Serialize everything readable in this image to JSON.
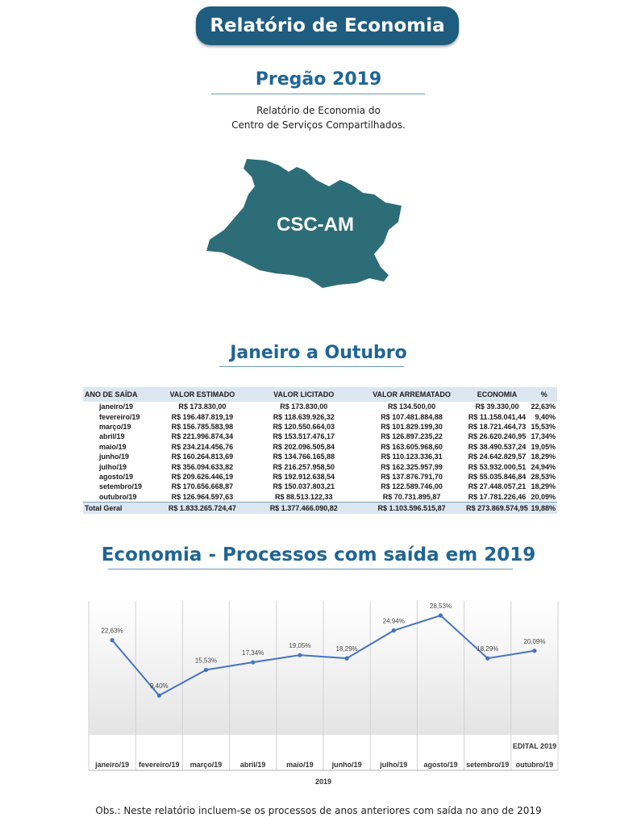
{
  "header": {
    "title": "Relatório de Economia"
  },
  "section1": {
    "title": "Pregão 2019",
    "subtitle_line1": "Relatório de Economia do",
    "subtitle_line2": "Centro de Serviços Compartilhados."
  },
  "map": {
    "label": "CSC-AM",
    "color": "#2c6d78"
  },
  "section2": {
    "title": "Janeiro a Outubro"
  },
  "table": {
    "headers": [
      "ANO DE SAÍDA",
      "VALOR ESTIMADO",
      "VALOR LICITADO",
      "VALOR ARREMATADO",
      "ECONOMIA",
      "%"
    ],
    "rows": [
      [
        "janeiro/19",
        "R$ 173.830,00",
        "R$ 173.830,00",
        "R$ 134.500,00",
        "R$ 39.330,00",
        "22,63%"
      ],
      [
        "fevereiro/19",
        "R$ 196.487.819,19",
        "R$ 118.639.926,32",
        "R$ 107.481.884,88",
        "R$ 11.158.041,44",
        "9,40%"
      ],
      [
        "março/19",
        "R$ 156.785.583,98",
        "R$ 120.550.664,03",
        "R$ 101.829.199,30",
        "R$ 18.721.464,73",
        "15,53%"
      ],
      [
        "abril/19",
        "R$ 221.996.874,34",
        "R$ 153.517.476,17",
        "R$ 126.897.235,22",
        "R$ 26.620.240,95",
        "17,34%"
      ],
      [
        "maio/19",
        "R$ 234.214.456,76",
        "R$ 202.096.505,84",
        "R$ 163.605.968,60",
        "R$ 38.490.537,24",
        "19,05%"
      ],
      [
        "junho/19",
        "R$ 160.264.813,69",
        "R$ 134.766.165,88",
        "R$ 110.123.336,31",
        "R$ 24.642.829,57",
        "18,29%"
      ],
      [
        "julho/19",
        "R$ 356.094.633,82",
        "R$ 216.257.958,50",
        "R$ 162.325.957,99",
        "R$ 53.932.000,51",
        "24,94%"
      ],
      [
        "agosto/19",
        "R$ 209.626.446,19",
        "R$ 192.912.638,54",
        "R$ 137.876.791,70",
        "R$ 55.035.846,84",
        "28,53%"
      ],
      [
        "setembro/19",
        "R$ 170.656.668,87",
        "R$ 150.037.803,21",
        "R$ 122.589.746,00",
        "R$ 27.448.057,21",
        "18,29%"
      ],
      [
        "outubro/19",
        "R$ 126.964.597,63",
        "R$ 88.513.122,33",
        "R$ 70.731.895,87",
        "R$ 17.781.226,46",
        "20,09%"
      ]
    ],
    "total": [
      "Total Geral",
      "R$ 1.833.265.724,47",
      "R$ 1.377.466.090,82",
      "R$ 1.103.596.515,87",
      "R$ 273.869.574,95",
      "19,88%"
    ]
  },
  "section3": {
    "title": "Economia - Processos com saída em 2019"
  },
  "chart_data": {
    "type": "line",
    "categories": [
      "janeiro/19",
      "fevereiro/19",
      "março/19",
      "abril/19",
      "maio/19",
      "junho/19",
      "julho/19",
      "agosto/19",
      "setembro/19",
      "outubro/19"
    ],
    "values": [
      22.63,
      9.4,
      15.53,
      17.34,
      19.05,
      18.29,
      24.94,
      28.53,
      18.29,
      20.09
    ],
    "data_labels": [
      "22,63%",
      "9,40%",
      "15,53%",
      "17,34%",
      "19,05%",
      "18,29%",
      "24,94%",
      "28,53%",
      "18,29%",
      "20,09%"
    ],
    "group_label": "2019",
    "edital_label": "EDITAL 2019",
    "line_color": "#4472c4",
    "grid": false,
    "ylim": [
      0,
      32
    ]
  },
  "footer": {
    "note": "Obs.: Neste relatório incluem-se os processos de anos anteriores com saída no ano de 2019"
  }
}
